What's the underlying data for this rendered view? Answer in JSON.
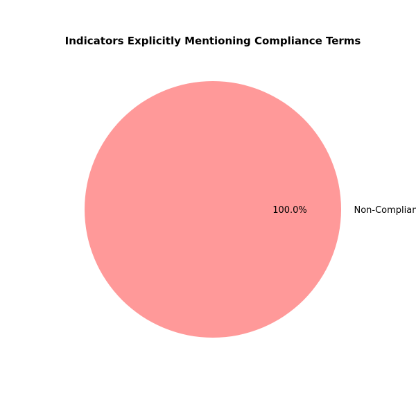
{
  "chart_data": {
    "type": "pie",
    "title": "Indicators Explicitly Mentioning Compliance Terms",
    "categories": [
      "Non-Compliant"
    ],
    "values": [
      100.0
    ],
    "percent_labels": [
      "100.0%"
    ],
    "colors": [
      "#ff9999"
    ],
    "legend": "none"
  }
}
